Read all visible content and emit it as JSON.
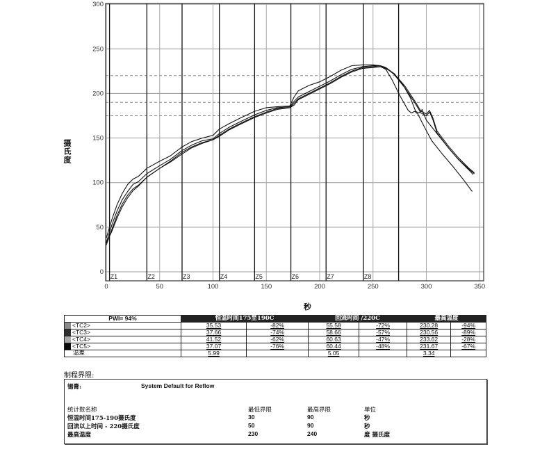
{
  "chart_data": {
    "type": "line",
    "title": "",
    "xlabel": "秒",
    "ylabel": "摄氏度",
    "xlim": [
      0,
      350
    ],
    "ylim": [
      0,
      300
    ],
    "x_ticks": [
      0,
      50,
      100,
      150,
      200,
      250,
      300,
      350
    ],
    "y_ticks": [
      0,
      50,
      100,
      150,
      200,
      250,
      300
    ],
    "grid": true,
    "reference_lines_dashed": [
      175,
      190,
      220
    ],
    "zones": [
      {
        "label": "Z1",
        "x": 3
      },
      {
        "label": "Z2",
        "x": 38
      },
      {
        "label": "Z3",
        "x": 71
      },
      {
        "label": "Z4",
        "x": 106
      },
      {
        "label": "Z5",
        "x": 139
      },
      {
        "label": "Z6",
        "x": 173
      },
      {
        "label": "Z7",
        "x": 206
      },
      {
        "label": "Z8",
        "x": 241
      },
      {
        "label": "",
        "x": 274
      }
    ],
    "series": [
      {
        "name": "<TC2>",
        "x": [
          0,
          5,
          10,
          15,
          20,
          25,
          30,
          38,
          50,
          60,
          71,
          80,
          90,
          100,
          106,
          115,
          125,
          139,
          150,
          160,
          172,
          176,
          180,
          190,
          200,
          210,
          220,
          230,
          240,
          250,
          257,
          262,
          270,
          278,
          285,
          290,
          293,
          296,
          300,
          310,
          320,
          330,
          340,
          345
        ],
        "y": [
          38,
          58,
          75,
          88,
          98,
          104,
          107,
          116,
          124,
          130,
          140,
          146,
          150,
          153,
          160,
          166,
          172,
          180,
          184,
          185,
          186,
          196,
          203,
          209,
          213,
          219,
          226,
          231,
          232,
          232,
          231,
          228,
          222,
          210,
          195,
          180,
          178,
          182,
          170,
          155,
          140,
          126,
          115,
          110
        ]
      },
      {
        "name": "<TC3>",
        "x": [
          0,
          5,
          10,
          15,
          20,
          25,
          30,
          38,
          50,
          60,
          71,
          80,
          90,
          100,
          106,
          115,
          125,
          139,
          150,
          160,
          172,
          176,
          180,
          190,
          200,
          210,
          220,
          230,
          240,
          250,
          257,
          262,
          270,
          280,
          290,
          295,
          300,
          303,
          306,
          310,
          320,
          330,
          340,
          345
        ],
        "y": [
          33,
          52,
          68,
          81,
          90,
          98,
          101,
          110,
          119,
          126,
          136,
          142,
          147,
          149,
          155,
          162,
          168,
          176,
          181,
          184,
          185,
          191,
          196,
          202,
          208,
          214,
          221,
          227,
          230,
          231,
          231,
          229,
          222,
          208,
          190,
          180,
          177,
          181,
          173,
          158,
          142,
          128,
          116,
          111
        ]
      },
      {
        "name": "<TC4>",
        "x": [
          0,
          5,
          10,
          15,
          20,
          25,
          30,
          38,
          50,
          60,
          71,
          80,
          90,
          100,
          106,
          115,
          125,
          139,
          150,
          160,
          172,
          176,
          180,
          190,
          200,
          210,
          220,
          230,
          240,
          250,
          257,
          262,
          270,
          280,
          290,
          295,
          300,
          303,
          306,
          310,
          320,
          330,
          340,
          344
        ],
        "y": [
          30,
          47,
          63,
          76,
          86,
          93,
          97,
          106,
          116,
          124,
          134,
          140,
          145,
          148,
          153,
          160,
          166,
          174,
          179,
          183,
          184,
          189,
          194,
          200,
          206,
          212,
          219,
          225,
          229,
          230,
          231,
          229,
          221,
          206,
          188,
          178,
          175,
          179,
          171,
          156,
          140,
          126,
          114,
          109
        ]
      },
      {
        "name": "<TC5>",
        "x": [
          0,
          5,
          10,
          15,
          20,
          25,
          30,
          38,
          50,
          60,
          71,
          80,
          90,
          100,
          106,
          115,
          125,
          139,
          150,
          160,
          172,
          176,
          180,
          190,
          200,
          210,
          220,
          230,
          240,
          250,
          257,
          262,
          268,
          275,
          283,
          286,
          289,
          292,
          297,
          305,
          315,
          325,
          335,
          343
        ],
        "y": [
          32,
          45,
          60,
          73,
          83,
          91,
          96,
          106,
          116,
          123,
          132,
          139,
          144,
          148,
          152,
          159,
          165,
          173,
          178,
          182,
          184,
          187,
          193,
          199,
          205,
          211,
          218,
          224,
          228,
          229,
          230,
          227,
          215,
          198,
          181,
          178,
          180,
          177,
          165,
          147,
          132,
          118,
          103,
          90
        ]
      }
    ]
  },
  "table": {
    "pwi": "PWI= 94%",
    "headers": [
      "恒温时间175至190C",
      "回流时间 /220C",
      "最高温度"
    ],
    "rows": [
      {
        "name": "<TC2>",
        "swatch": "#8a8a8a",
        "v1": "35.53",
        "p1": "-82%",
        "v2": "55.58",
        "p2": "-72%",
        "v3": "230.28",
        "p3": "-94%"
      },
      {
        "name": "<TC3>",
        "swatch": "#2e2e2e",
        "v1": "37.66",
        "p1": "-74%",
        "v2": "58.66",
        "p2": "-57%",
        "v3": "230.56",
        "p3": "-89%"
      },
      {
        "name": "<TC4>",
        "swatch": "#a9a9a9",
        "v1": "41.52",
        "p1": "-62%",
        "v2": "60.63",
        "p2": "-47%",
        "v3": "233.62",
        "p3": "-28%"
      },
      {
        "name": "<TC5>",
        "swatch": "#0a0a0a",
        "v1": "37.07",
        "p1": "-76%",
        "v2": "60.44",
        "p2": "-48%",
        "v3": "231.67",
        "p3": "-67%"
      }
    ],
    "diff": {
      "label": "温差",
      "v1": "5.99",
      "v2": "5.05",
      "v3": "3.34"
    }
  },
  "limits": {
    "title": "制程界限:",
    "solder_label": "锡膏:",
    "solder_value": "System Default for Reflow",
    "headers": {
      "name": "统计数名称",
      "low": "最低界限",
      "high": "最高界限",
      "unit": "单位"
    },
    "rows": [
      {
        "name": "恒温时间175-190摄氏度",
        "low": "30",
        "high": "90",
        "unit": "秒"
      },
      {
        "name": "回流以上时间 - 220摄氏度",
        "low": "50",
        "high": "90",
        "unit": "秒"
      },
      {
        "name": "最高温度",
        "low": "230",
        "high": "240",
        "unit": "度 摄氏度"
      }
    ]
  }
}
